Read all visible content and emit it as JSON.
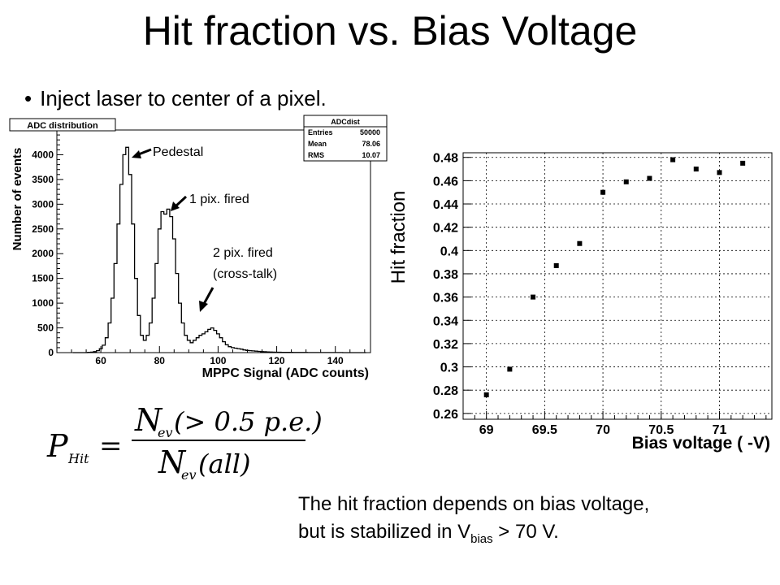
{
  "slide": {
    "title": "Hit fraction vs. Bias Voltage",
    "bullet": "Inject laser to center of a pixel.",
    "conclusion_line1": "The hit fraction depends on bias voltage,",
    "conclusion_line2_pre": "but is stabilized in V",
    "conclusion_sub": "bias",
    "conclusion_line2_post": " > 70 V."
  },
  "formula": {
    "lhs": "P",
    "lhs_sub": "Hit",
    "equals": "=",
    "num": "N",
    "num_sub": "ev",
    "num_arg": "(> 0.5 p.e.)",
    "den": "N",
    "den_sub": "ev",
    "den_arg": "(all)"
  },
  "chart_data": [
    {
      "type": "line",
      "title": "ADC distribution",
      "xlabel": "MPPC Signal (ADC counts)",
      "ylabel": "Number of events",
      "xlim": [
        45,
        152
      ],
      "ylim": [
        0,
        4500
      ],
      "xticks": [
        60,
        80,
        100,
        120,
        140
      ],
      "yticks": [
        0,
        500,
        1000,
        1500,
        2000,
        2500,
        3000,
        3500,
        4000
      ],
      "stats": [
        {
          "label": "ADCdist",
          "value": ""
        },
        {
          "label": "Entries",
          "value": "50000"
        },
        {
          "label": "Mean",
          "value": "78.06"
        },
        {
          "label": "RMS",
          "value": "10.07"
        }
      ],
      "annotations": [
        "Pedestal",
        "1 pix. fired",
        "2 pix. fired",
        "(cross-talk)"
      ],
      "x": [
        51,
        52,
        53,
        54,
        55,
        56,
        57,
        58,
        59,
        60,
        61,
        62,
        63,
        64,
        65,
        66,
        67,
        68,
        69,
        70,
        71,
        72,
        73,
        74,
        75,
        76,
        77,
        78,
        79,
        80,
        81,
        82,
        83,
        84,
        85,
        86,
        87,
        88,
        89,
        90,
        91,
        92,
        93,
        94,
        95,
        96,
        97,
        98,
        99,
        100,
        101,
        102,
        103,
        104,
        105,
        106,
        107,
        108,
        109,
        110,
        111,
        112,
        113,
        114,
        115,
        116,
        117,
        118,
        119,
        120,
        121,
        122,
        123,
        124,
        125,
        126,
        127,
        128,
        129,
        130,
        131,
        132,
        133,
        134,
        135,
        136,
        137,
        138,
        139,
        140,
        141,
        142,
        143,
        144,
        145,
        146,
        147,
        148,
        149,
        150
      ],
      "y": [
        0,
        0,
        0,
        0,
        0,
        5,
        10,
        20,
        40,
        80,
        150,
        300,
        600,
        1100,
        1800,
        2600,
        3400,
        4000,
        4150,
        3600,
        2600,
        1500,
        750,
        350,
        250,
        350,
        600,
        1100,
        1800,
        2500,
        2850,
        2800,
        2900,
        2750,
        2300,
        1600,
        1000,
        600,
        350,
        250,
        200,
        250,
        300,
        350,
        380,
        420,
        470,
        500,
        450,
        380,
        300,
        220,
        160,
        120,
        100,
        90,
        80,
        70,
        55,
        45,
        40,
        35,
        30,
        25,
        20,
        18,
        15,
        12,
        10,
        9,
        8,
        7,
        6,
        5,
        5,
        4,
        4,
        3,
        3,
        3,
        2,
        2,
        2,
        2,
        1,
        1,
        1,
        1,
        1,
        1,
        1,
        1,
        0,
        0,
        0,
        0,
        0,
        0,
        0,
        0
      ]
    },
    {
      "type": "scatter",
      "xlabel": "Bias voltage ( -V)",
      "ylabel": "Hit fraction",
      "xlim": [
        68.8,
        71.45
      ],
      "ylim": [
        0.255,
        0.484
      ],
      "grid": true,
      "xticks": [
        69,
        69.5,
        70,
        70.5,
        71
      ],
      "xtick_labels": [
        "69",
        "69.5",
        "70",
        "70.5",
        "71"
      ],
      "yticks": [
        0.26,
        0.28,
        0.3,
        0.32,
        0.34,
        0.36,
        0.38,
        0.4,
        0.42,
        0.44,
        0.46,
        0.48
      ],
      "ytick_labels": [
        "0.26",
        "0.28",
        "0.3",
        "0.32",
        "0.34",
        "0.36",
        "0.38",
        "0.4",
        "0.42",
        "0.44",
        "0.46",
        "0.48"
      ],
      "x": [
        69.0,
        69.2,
        69.4,
        69.6,
        69.8,
        70.0,
        70.2,
        70.4,
        70.6,
        70.8,
        71.0,
        71.2
      ],
      "y": [
        0.276,
        0.298,
        0.36,
        0.387,
        0.406,
        0.45,
        0.459,
        0.462,
        0.478,
        0.47,
        0.467,
        0.475
      ]
    }
  ]
}
